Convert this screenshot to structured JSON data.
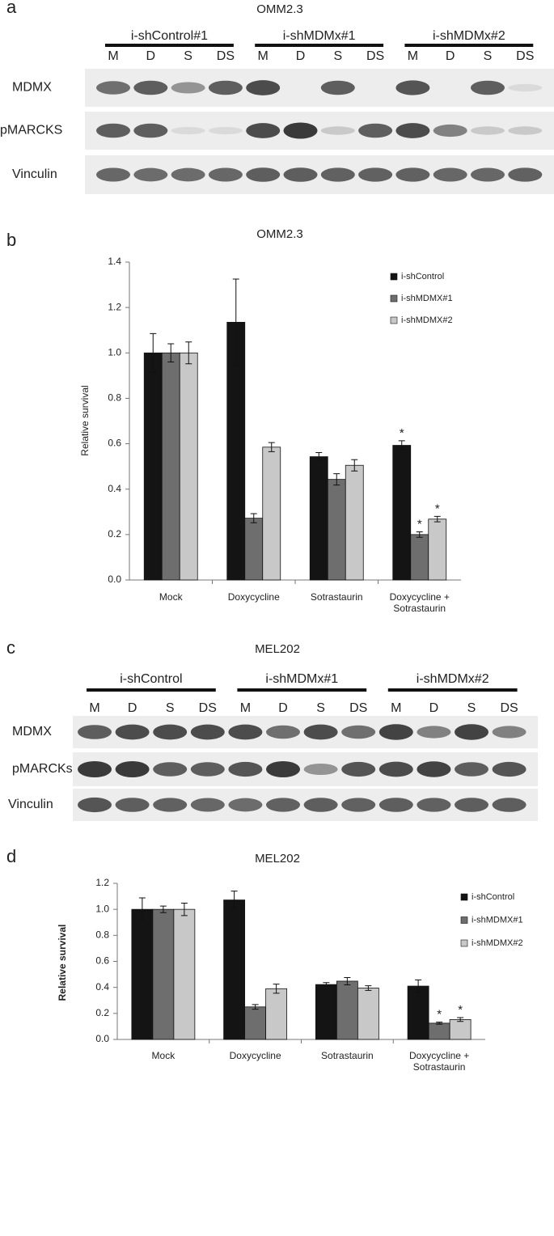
{
  "panel_labels": [
    "a",
    "b",
    "c",
    "d"
  ],
  "blots": [
    {
      "title": "OMM2.3",
      "groups": [
        {
          "name": "i-shControl#1",
          "lanes": [
            "M",
            "D",
            "S",
            "DS"
          ]
        },
        {
          "name": "i-shMDMx#1",
          "lanes": [
            "M",
            "D",
            "S",
            "DS"
          ]
        },
        {
          "name": "i-shMDMx#2",
          "lanes": [
            "M",
            "D",
            "S",
            "DS"
          ]
        }
      ],
      "rows": [
        "MDMX",
        "pMARCKS",
        "Vinculin"
      ]
    },
    {
      "title": "MEL202",
      "groups": [
        {
          "name": "i-shControl",
          "lanes": [
            "M",
            "D",
            "S",
            "DS"
          ]
        },
        {
          "name": "i-shMDMx#1",
          "lanes": [
            "M",
            "D",
            "S",
            "DS"
          ]
        },
        {
          "name": "i-shMDMx#2",
          "lanes": [
            "M",
            "D",
            "S",
            "DS"
          ]
        }
      ],
      "rows": [
        "MDMX",
        "pMARCKs",
        "Vinculin"
      ]
    }
  ],
  "chart_data": [
    {
      "type": "bar",
      "title": "OMM2.3",
      "y_label": "Relative survival",
      "categories": [
        "Mock",
        "Doxycycline",
        "Sotrastaurin",
        "Doxycycline + Sotrastaurin"
      ],
      "series": [
        {
          "name": "i-shControl",
          "color": "#141414",
          "values": [
            1.0,
            1.135,
            0.543,
            0.593
          ],
          "errors": [
            0.085,
            0.19,
            0.018,
            0.02
          ],
          "significance": [
            null,
            null,
            null,
            "*"
          ]
        },
        {
          "name": "i-shMDMX#1",
          "color": "#6e6e6e",
          "values": [
            1.0,
            0.272,
            0.443,
            0.2
          ],
          "errors": [
            0.04,
            0.02,
            0.025,
            0.012
          ],
          "significance": [
            null,
            null,
            null,
            "*"
          ]
        },
        {
          "name": "i-shMDMX#2",
          "color": "#c8c8c8",
          "values": [
            1.0,
            0.585,
            0.505,
            0.268
          ],
          "errors": [
            0.048,
            0.02,
            0.025,
            0.012
          ],
          "significance": [
            null,
            null,
            null,
            "*"
          ]
        }
      ],
      "ylim": [
        0,
        1.4
      ],
      "yticks": [
        {
          "value": 0,
          "label": "0.0"
        },
        0.2,
        0.4,
        0.6,
        0.8,
        {
          "value": 1,
          "label": "1.0"
        },
        1.2,
        1.4
      ],
      "legend": "upper right"
    },
    {
      "type": "bar",
      "title": "MEL202",
      "y_label": "Relative survival",
      "categories": [
        "Mock",
        "Doxycycline",
        "Sotrastaurin",
        "Doxycycline + Sotrastaurin"
      ],
      "series": [
        {
          "name": "i-shControl",
          "color": "#141414",
          "values": [
            1.0,
            1.072,
            0.422,
            0.41
          ],
          "errors": [
            0.088,
            0.068,
            0.015,
            0.048
          ],
          "significance": [
            null,
            null,
            null,
            null
          ]
        },
        {
          "name": "i-shMDMX#1",
          "color": "#6e6e6e",
          "values": [
            1.0,
            0.25,
            0.448,
            0.125
          ],
          "errors": [
            0.025,
            0.018,
            0.028,
            0.008
          ],
          "significance": [
            null,
            null,
            null,
            "*"
          ]
        },
        {
          "name": "i-shMDMX#2",
          "color": "#c8c8c8",
          "values": [
            1.0,
            0.39,
            0.395,
            0.153
          ],
          "errors": [
            0.048,
            0.035,
            0.018,
            0.015
          ],
          "significance": [
            null,
            null,
            null,
            "*"
          ]
        }
      ],
      "ylim": [
        0,
        1.2
      ],
      "yticks": [
        {
          "value": 0,
          "label": "0.0"
        },
        0.2,
        0.4,
        0.6,
        0.8,
        {
          "value": 1,
          "label": "1.0"
        },
        1.2
      ],
      "legend": "upper right"
    }
  ]
}
